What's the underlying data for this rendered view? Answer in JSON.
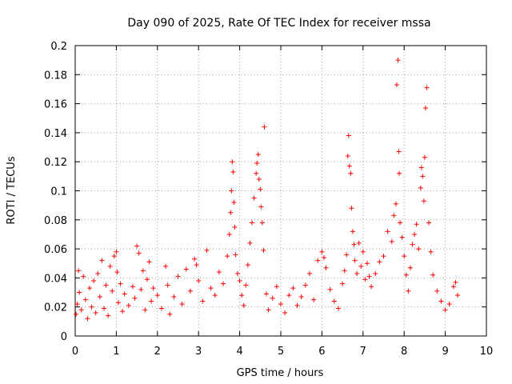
{
  "chart_data": {
    "type": "scatter",
    "title": "Day 090 of 2025, Rate Of TEC Index for receiver mssa",
    "xlabel": "GPS time / hours",
    "ylabel": "ROTI / TECUs",
    "xlim": [
      0,
      10
    ],
    "ylim": [
      0,
      0.2
    ],
    "xticks": [
      0,
      1,
      2,
      3,
      4,
      5,
      6,
      7,
      8,
      9,
      10
    ],
    "yticks": [
      0,
      0.02,
      0.04,
      0.06,
      0.08,
      0.1,
      0.12,
      0.14,
      0.16,
      0.18,
      0.2
    ],
    "grid": true,
    "marker": "+",
    "series": [
      {
        "name": "ROTI",
        "color": "#ff0000",
        "points": [
          [
            0.02,
            0.015
          ],
          [
            0.05,
            0.022
          ],
          [
            0.08,
            0.045
          ],
          [
            0.1,
            0.03
          ],
          [
            0.15,
            0.018
          ],
          [
            0.2,
            0.041
          ],
          [
            0.25,
            0.025
          ],
          [
            0.3,
            0.012
          ],
          [
            0.35,
            0.033
          ],
          [
            0.4,
            0.02
          ],
          [
            0.45,
            0.038
          ],
          [
            0.5,
            0.016
          ],
          [
            0.55,
            0.043
          ],
          [
            0.6,
            0.027
          ],
          [
            0.65,
            0.052
          ],
          [
            0.7,
            0.019
          ],
          [
            0.75,
            0.035
          ],
          [
            0.8,
            0.014
          ],
          [
            0.85,
            0.048
          ],
          [
            0.9,
            0.031
          ],
          [
            0.95,
            0.055
          ],
          [
            1.0,
            0.058
          ],
          [
            1.02,
            0.044
          ],
          [
            1.05,
            0.023
          ],
          [
            1.1,
            0.036
          ],
          [
            1.15,
            0.017
          ],
          [
            1.2,
            0.029
          ],
          [
            1.3,
            0.021
          ],
          [
            1.4,
            0.034
          ],
          [
            1.45,
            0.026
          ],
          [
            1.5,
            0.062
          ],
          [
            1.55,
            0.057
          ],
          [
            1.6,
            0.032
          ],
          [
            1.65,
            0.045
          ],
          [
            1.7,
            0.018
          ],
          [
            1.75,
            0.039
          ],
          [
            1.8,
            0.051
          ],
          [
            1.85,
            0.024
          ],
          [
            1.9,
            0.033
          ],
          [
            2.0,
            0.028
          ],
          [
            2.1,
            0.019
          ],
          [
            2.2,
            0.048
          ],
          [
            2.25,
            0.035
          ],
          [
            2.3,
            0.015
          ],
          [
            2.4,
            0.027
          ],
          [
            2.5,
            0.041
          ],
          [
            2.6,
            0.022
          ],
          [
            2.7,
            0.046
          ],
          [
            2.8,
            0.031
          ],
          [
            2.9,
            0.053
          ],
          [
            2.95,
            0.049
          ],
          [
            3.0,
            0.038
          ],
          [
            3.1,
            0.024
          ],
          [
            3.2,
            0.059
          ],
          [
            3.3,
            0.033
          ],
          [
            3.4,
            0.028
          ],
          [
            3.5,
            0.044
          ],
          [
            3.6,
            0.036
          ],
          [
            3.7,
            0.055
          ],
          [
            3.75,
            0.07
          ],
          [
            3.78,
            0.085
          ],
          [
            3.8,
            0.1
          ],
          [
            3.82,
            0.12
          ],
          [
            3.84,
            0.113
          ],
          [
            3.86,
            0.092
          ],
          [
            3.88,
            0.075
          ],
          [
            3.9,
            0.056
          ],
          [
            3.95,
            0.043
          ],
          [
            4.0,
            0.038
          ],
          [
            4.05,
            0.028
          ],
          [
            4.1,
            0.021
          ],
          [
            4.15,
            0.035
          ],
          [
            4.2,
            0.049
          ],
          [
            4.25,
            0.064
          ],
          [
            4.3,
            0.078
          ],
          [
            4.35,
            0.095
          ],
          [
            4.4,
            0.112
          ],
          [
            4.42,
            0.119
          ],
          [
            4.45,
            0.125
          ],
          [
            4.47,
            0.108
          ],
          [
            4.5,
            0.101
          ],
          [
            4.52,
            0.089
          ],
          [
            4.55,
            0.078
          ],
          [
            4.58,
            0.059
          ],
          [
            4.6,
            0.144
          ],
          [
            4.65,
            0.029
          ],
          [
            4.7,
            0.018
          ],
          [
            4.8,
            0.026
          ],
          [
            4.9,
            0.034
          ],
          [
            5.0,
            0.022
          ],
          [
            5.1,
            0.016
          ],
          [
            5.2,
            0.028
          ],
          [
            5.3,
            0.033
          ],
          [
            5.4,
            0.021
          ],
          [
            5.5,
            0.027
          ],
          [
            5.6,
            0.035
          ],
          [
            5.7,
            0.043
          ],
          [
            5.8,
            0.025
          ],
          [
            5.9,
            0.052
          ],
          [
            6.0,
            0.058
          ],
          [
            6.05,
            0.054
          ],
          [
            6.1,
            0.047
          ],
          [
            6.2,
            0.032
          ],
          [
            6.3,
            0.024
          ],
          [
            6.4,
            0.019
          ],
          [
            6.5,
            0.036
          ],
          [
            6.55,
            0.045
          ],
          [
            6.6,
            0.056
          ],
          [
            6.63,
            0.124
          ],
          [
            6.65,
            0.138
          ],
          [
            6.67,
            0.117
          ],
          [
            6.7,
            0.112
          ],
          [
            6.72,
            0.088
          ],
          [
            6.75,
            0.072
          ],
          [
            6.78,
            0.063
          ],
          [
            6.8,
            0.052
          ],
          [
            6.85,
            0.043
          ],
          [
            6.9,
            0.064
          ],
          [
            6.95,
            0.048
          ],
          [
            7.0,
            0.058
          ],
          [
            7.05,
            0.039
          ],
          [
            7.1,
            0.05
          ],
          [
            7.15,
            0.041
          ],
          [
            7.2,
            0.034
          ],
          [
            7.3,
            0.043
          ],
          [
            7.4,
            0.051
          ],
          [
            7.5,
            0.055
          ],
          [
            7.6,
            0.072
          ],
          [
            7.7,
            0.065
          ],
          [
            7.75,
            0.083
          ],
          [
            7.8,
            0.091
          ],
          [
            7.82,
            0.173
          ],
          [
            7.85,
            0.19
          ],
          [
            7.87,
            0.127
          ],
          [
            7.88,
            0.112
          ],
          [
            7.9,
            0.078
          ],
          [
            7.95,
            0.068
          ],
          [
            8.0,
            0.055
          ],
          [
            8.05,
            0.042
          ],
          [
            8.1,
            0.031
          ],
          [
            8.15,
            0.047
          ],
          [
            8.2,
            0.063
          ],
          [
            8.25,
            0.07
          ],
          [
            8.3,
            0.077
          ],
          [
            8.35,
            0.06
          ],
          [
            8.4,
            0.102
          ],
          [
            8.42,
            0.116
          ],
          [
            8.45,
            0.11
          ],
          [
            8.48,
            0.093
          ],
          [
            8.5,
            0.123
          ],
          [
            8.52,
            0.157
          ],
          [
            8.55,
            0.171
          ],
          [
            8.6,
            0.078
          ],
          [
            8.65,
            0.058
          ],
          [
            8.7,
            0.042
          ],
          [
            8.8,
            0.031
          ],
          [
            8.9,
            0.024
          ],
          [
            9.0,
            0.018
          ],
          [
            9.1,
            0.022
          ],
          [
            9.2,
            0.034
          ],
          [
            9.25,
            0.037
          ],
          [
            9.3,
            0.028
          ]
        ]
      }
    ]
  }
}
